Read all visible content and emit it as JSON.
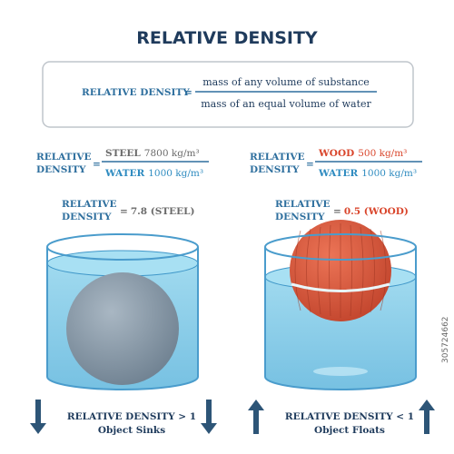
{
  "title": "RELATIVE DENSITY",
  "definition": {
    "label": "RELATIVE DENSITY",
    "equals": "=",
    "numerator": "mass of any volume of substance",
    "denominator": "mass of an equal volume of water"
  },
  "examples": [
    {
      "label_line1": "RELATIVE",
      "label_line2": "DENSITY",
      "equals": "=",
      "numerator_material": "STEEL",
      "numerator_value": "7800 kg/m³",
      "denominator_material": "WATER",
      "denominator_value": "1000 kg/m³",
      "result_label_line1": "RELATIVE",
      "result_label_line2": "DENSITY",
      "result_equals": "=",
      "result": "7.8 (STEEL)",
      "comparison": "RELATIVE DENSITY > 1",
      "outcome": "Object Sinks"
    },
    {
      "label_line1": "RELATIVE",
      "label_line2": "DENSITY",
      "equals": "=",
      "numerator_material": "WOOD",
      "numerator_value": "500 kg/m³",
      "denominator_material": "WATER",
      "denominator_value": "1000 kg/m³",
      "result_label_line1": "RELATIVE",
      "result_label_line2": "DENSITY",
      "result_equals": "=",
      "result": "0.5 (WOOD)",
      "comparison": "RELATIVE DENSITY < 1",
      "outcome": "Object Floats"
    }
  ],
  "watermark": "305724662"
}
